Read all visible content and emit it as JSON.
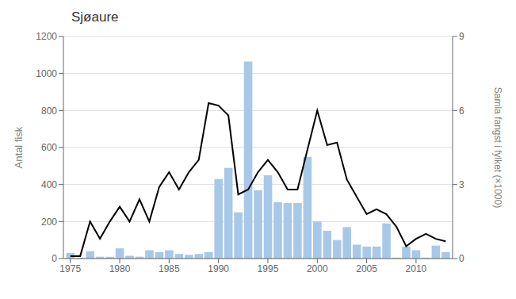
{
  "chart_data": {
    "type": "bar",
    "title": "Sjøaure",
    "ylabel": "Antal fisk",
    "y2label": "Samla fangst i fylket (×1000)",
    "x": [
      1975,
      1976,
      1977,
      1978,
      1979,
      1980,
      1981,
      1982,
      1983,
      1984,
      1985,
      1986,
      1987,
      1988,
      1989,
      1990,
      1991,
      1992,
      1993,
      1994,
      1995,
      1996,
      1997,
      1998,
      1999,
      2000,
      2001,
      2002,
      2003,
      2004,
      2005,
      2006,
      2007,
      2008,
      2009,
      2010,
      2011,
      2012,
      2013
    ],
    "series": [
      {
        "type": "bar",
        "color": "#a8c8e8",
        "values": [
          30,
          5,
          40,
          10,
          10,
          55,
          15,
          10,
          45,
          35,
          45,
          25,
          20,
          25,
          35,
          430,
          490,
          250,
          1065,
          370,
          450,
          305,
          300,
          300,
          550,
          200,
          150,
          100,
          170,
          75,
          65,
          65,
          190,
          5,
          65,
          45,
          5,
          70,
          35
        ]
      },
      {
        "type": "line",
        "color": "#000000",
        "axis": "y2",
        "values": [
          0.1,
          0.1,
          1.5,
          0.8,
          1.5,
          2.1,
          1.5,
          2.4,
          1.5,
          2.9,
          3.5,
          2.8,
          3.5,
          4.0,
          6.3,
          6.2,
          5.8,
          2.6,
          2.8,
          3.5,
          4.0,
          3.5,
          2.8,
          2.8,
          4.4,
          6.0,
          4.6,
          4.7,
          3.2,
          2.5,
          1.8,
          2.0,
          1.8,
          1.3,
          0.5,
          0.8,
          1.0,
          0.8,
          0.7
        ]
      }
    ],
    "xlim": [
      1974.3,
      2013.7
    ],
    "xticks": [
      1975,
      1980,
      1985,
      1990,
      1995,
      2000,
      2005,
      2010
    ],
    "ylim": [
      0,
      1200
    ],
    "yticks": [
      0,
      200,
      400,
      600,
      800,
      1000,
      1200
    ],
    "y2lim": [
      0,
      9
    ],
    "y2ticks": [
      0,
      3,
      6,
      9
    ],
    "grid": true
  }
}
